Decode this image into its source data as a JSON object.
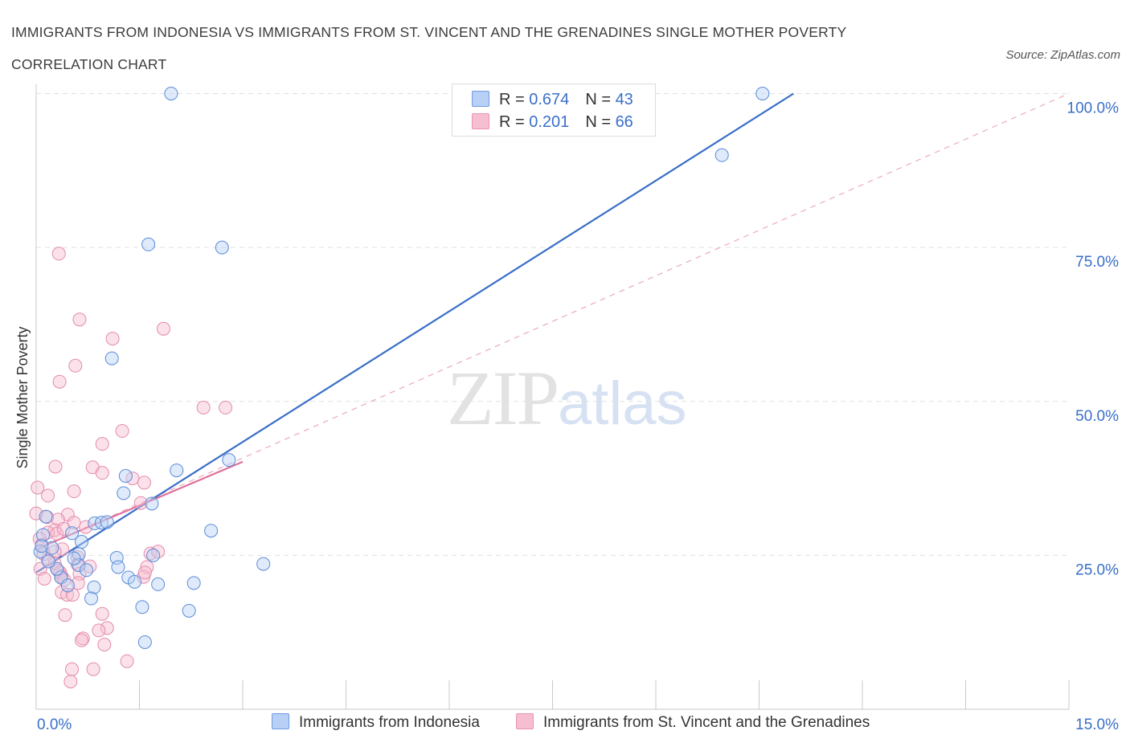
{
  "title": "IMMIGRANTS FROM INDONESIA VS IMMIGRANTS FROM ST. VINCENT AND THE GRENADINES SINGLE MOTHER POVERTY CORRELATION CHART",
  "source": "Source: ZipAtlas.com",
  "watermark": {
    "zip": "ZIP",
    "atlas": "atlas"
  },
  "colors": {
    "blue": "#3a6fc8",
    "blue_fill": "#b8d0f5",
    "pink": "#e0709a",
    "pink_fill": "#f6bfd1",
    "grid": "#e0e0e0",
    "tick_label": "#3a6fc8"
  },
  "legend": [
    {
      "r_label": "R = ",
      "r_value": "0.674",
      "n_label": "N = ",
      "n_value": "43"
    },
    {
      "r_label": "R = ",
      "r_value": "0.201",
      "n_label": "N = ",
      "n_value": "66"
    }
  ],
  "chart_data": {
    "type": "scatter",
    "title": "IMMIGRANTS FROM INDONESIA VS IMMIGRANTS FROM ST. VINCENT AND THE GRENADINES SINGLE MOTHER POVERTY CORRELATION CHART",
    "xlabel": "",
    "ylabel": "Single Mother Poverty",
    "xlim": [
      0,
      15
    ],
    "ylim": [
      0,
      100
    ],
    "x_tick_labels": [
      "0.0%",
      "15.0%"
    ],
    "y_ticks": [
      25,
      50,
      75,
      100
    ],
    "y_tick_labels": [
      "25.0%",
      "50.0%",
      "75.0%",
      "100.0%"
    ],
    "grid": true,
    "legend_position": "top-center",
    "series": [
      {
        "name": "Immigrants from Indonesia",
        "color": "#3a6fc8",
        "points": [
          [
            1.96,
            100
          ],
          [
            10.55,
            100
          ],
          [
            9.96,
            90
          ],
          [
            1.63,
            75.5
          ],
          [
            2.7,
            75
          ],
          [
            1.1,
            57
          ],
          [
            2.04,
            38.8
          ],
          [
            1.3,
            37.9
          ],
          [
            2.8,
            40.5
          ],
          [
            1.27,
            35.1
          ],
          [
            1.68,
            33.4
          ],
          [
            0.85,
            30.2
          ],
          [
            0.95,
            30.3
          ],
          [
            1.03,
            30.4
          ],
          [
            2.54,
            29
          ],
          [
            0.52,
            28.6
          ],
          [
            0.66,
            27.2
          ],
          [
            0.1,
            28.3
          ],
          [
            0.23,
            26.2
          ],
          [
            0.06,
            25.6
          ],
          [
            0.62,
            25.2
          ],
          [
            1.7,
            25
          ],
          [
            1.17,
            24.6
          ],
          [
            0.62,
            23.4
          ],
          [
            0.73,
            22.6
          ],
          [
            1.19,
            23.1
          ],
          [
            3.3,
            23.6
          ],
          [
            0.36,
            21.4
          ],
          [
            1.34,
            21.4
          ],
          [
            1.43,
            20.7
          ],
          [
            0.46,
            20.1
          ],
          [
            0.84,
            19.8
          ],
          [
            1.77,
            20.3
          ],
          [
            2.29,
            20.5
          ],
          [
            0.8,
            18
          ],
          [
            1.54,
            16.6
          ],
          [
            2.22,
            16
          ],
          [
            1.58,
            10.9
          ],
          [
            0.08,
            26.5
          ],
          [
            0.3,
            22.8
          ],
          [
            0.14,
            31.3
          ],
          [
            0.55,
            24.5
          ],
          [
            0.18,
            24.0
          ]
        ],
        "trend": [
          [
            0,
            22.2
          ],
          [
            11,
            100
          ]
        ]
      },
      {
        "name": "Immigrants from St. Vincent and the Grenadines",
        "color": "#e0709a",
        "points": [
          [
            0.33,
            74
          ],
          [
            0.63,
            63.3
          ],
          [
            1.85,
            61.8
          ],
          [
            1.11,
            60.2
          ],
          [
            0.57,
            55.8
          ],
          [
            0.34,
            53.2
          ],
          [
            2.43,
            49
          ],
          [
            2.75,
            49
          ],
          [
            1.25,
            45.2
          ],
          [
            0.96,
            43.1
          ],
          [
            0.28,
            39.4
          ],
          [
            0.82,
            39.3
          ],
          [
            0.96,
            38.4
          ],
          [
            1.4,
            37.5
          ],
          [
            1.57,
            36.8
          ],
          [
            0.02,
            36
          ],
          [
            0.55,
            35.4
          ],
          [
            0.17,
            34.7
          ],
          [
            1.52,
            33.5
          ],
          [
            0.0,
            31.8
          ],
          [
            0.46,
            31.6
          ],
          [
            0.16,
            31.2
          ],
          [
            0.32,
            30.8
          ],
          [
            0.55,
            30.3
          ],
          [
            0.72,
            29.6
          ],
          [
            0.27,
            29.1
          ],
          [
            0.17,
            28.7
          ],
          [
            0.3,
            28.5
          ],
          [
            0.05,
            27.7
          ],
          [
            0.08,
            26.7
          ],
          [
            0.38,
            26
          ],
          [
            0.27,
            25.6
          ],
          [
            1.66,
            25.3
          ],
          [
            1.77,
            25.6
          ],
          [
            0.11,
            25.2
          ],
          [
            0.6,
            24.7
          ],
          [
            0.17,
            24.3
          ],
          [
            0.27,
            23.7
          ],
          [
            0.6,
            23.5
          ],
          [
            0.78,
            23.2
          ],
          [
            1.61,
            23.1
          ],
          [
            0.06,
            22.8
          ],
          [
            0.32,
            22.5
          ],
          [
            0.35,
            22.2
          ],
          [
            0.63,
            22
          ],
          [
            0.37,
            21.6
          ],
          [
            1.56,
            21.5
          ],
          [
            0.12,
            21.2
          ],
          [
            0.41,
            21
          ],
          [
            0.61,
            20.5
          ],
          [
            1.58,
            22.2
          ],
          [
            0.37,
            19
          ],
          [
            0.45,
            18.6
          ],
          [
            0.53,
            18.6
          ],
          [
            0.42,
            15.3
          ],
          [
            0.96,
            15.5
          ],
          [
            1.03,
            13.2
          ],
          [
            0.91,
            12.8
          ],
          [
            0.68,
            11.5
          ],
          [
            0.66,
            11.2
          ],
          [
            0.99,
            10.5
          ],
          [
            1.32,
            7.8
          ],
          [
            0.52,
            6.5
          ],
          [
            0.83,
            6.5
          ],
          [
            0.5,
            4.5
          ],
          [
            0.4,
            29.3
          ]
        ],
        "trend": [
          [
            0,
            26
          ],
          [
            3,
            40.2
          ]
        ],
        "trend_extended": [
          [
            0,
            26
          ],
          [
            15,
            100
          ]
        ]
      }
    ]
  }
}
